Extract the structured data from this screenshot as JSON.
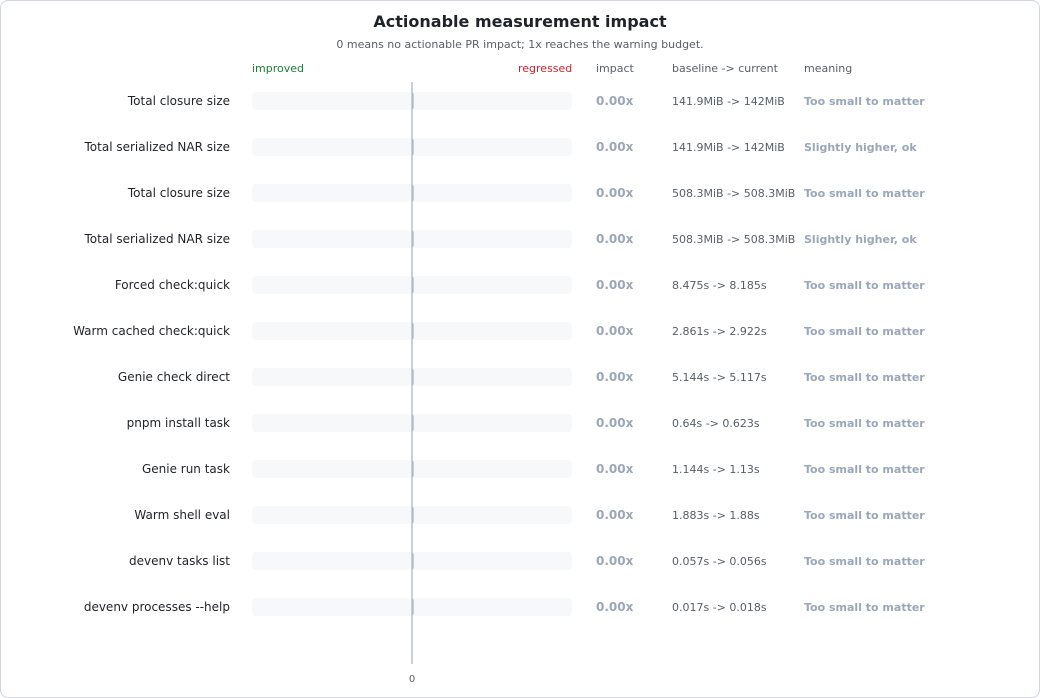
{
  "chart_data": {
    "type": "bar",
    "title": "Actionable measurement impact",
    "subtitle": "0 means no actionable PR impact; 1x reaches the warning budget.",
    "headers": {
      "improved": "improved",
      "regressed": "regressed",
      "impact": "impact",
      "baseline_current": "baseline -> current",
      "meaning": "meaning"
    },
    "xlim": [
      -1,
      1
    ],
    "x_ticks": [
      {
        "value": 0,
        "label": "0"
      }
    ],
    "colors": {
      "track": "#f6f8fa",
      "axis": "#b8c0cc",
      "neutral": "#9aa7b8",
      "improved": "#1a7f37",
      "regressed": "#cf222e"
    },
    "rows": [
      {
        "label": "Total closure size",
        "value": 0.0,
        "impact": "0.00x",
        "delta": "141.9MiB -> 142MiB",
        "meaning": "Too small to matter"
      },
      {
        "label": "Total serialized NAR size",
        "value": 0.0,
        "impact": "0.00x",
        "delta": "141.9MiB -> 142MiB",
        "meaning": "Slightly higher, ok"
      },
      {
        "label": "Total closure size",
        "value": 0.0,
        "impact": "0.00x",
        "delta": "508.3MiB -> 508.3MiB",
        "meaning": "Too small to matter"
      },
      {
        "label": "Total serialized NAR size",
        "value": 0.0,
        "impact": "0.00x",
        "delta": "508.3MiB -> 508.3MiB",
        "meaning": "Slightly higher, ok"
      },
      {
        "label": "Forced check:quick",
        "value": 0.0,
        "impact": "0.00x",
        "delta": "8.475s -> 8.185s",
        "meaning": "Too small to matter"
      },
      {
        "label": "Warm cached check:quick",
        "value": 0.0,
        "impact": "0.00x",
        "delta": "2.861s -> 2.922s",
        "meaning": "Too small to matter"
      },
      {
        "label": "Genie check direct",
        "value": 0.0,
        "impact": "0.00x",
        "delta": "5.144s -> 5.117s",
        "meaning": "Too small to matter"
      },
      {
        "label": "pnpm install task",
        "value": 0.0,
        "impact": "0.00x",
        "delta": "0.64s -> 0.623s",
        "meaning": "Too small to matter"
      },
      {
        "label": "Genie run task",
        "value": 0.0,
        "impact": "0.00x",
        "delta": "1.144s -> 1.13s",
        "meaning": "Too small to matter"
      },
      {
        "label": "Warm shell eval",
        "value": 0.0,
        "impact": "0.00x",
        "delta": "1.883s -> 1.88s",
        "meaning": "Too small to matter"
      },
      {
        "label": "devenv tasks list",
        "value": 0.0,
        "impact": "0.00x",
        "delta": "0.057s -> 0.056s",
        "meaning": "Too small to matter"
      },
      {
        "label": "devenv processes --help",
        "value": 0.0,
        "impact": "0.00x",
        "delta": "0.017s -> 0.018s",
        "meaning": "Too small to matter"
      }
    ]
  }
}
